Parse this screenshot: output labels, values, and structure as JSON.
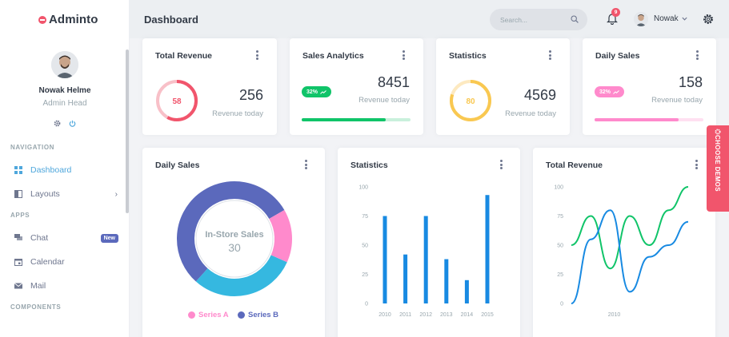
{
  "brand": {
    "name": "Adminto"
  },
  "user": {
    "name": "Nowak Helme",
    "role": "Admin Head"
  },
  "navigation": {
    "section_nav": "NAVIGATION",
    "section_apps": "APPS",
    "section_components": "COMPONENTS",
    "items": [
      {
        "label": "Dashboard",
        "icon": "dashboard-icon",
        "active": true
      },
      {
        "label": "Layouts",
        "icon": "layouts-icon"
      },
      {
        "label": "Chat",
        "icon": "chat-icon",
        "badge": "New"
      },
      {
        "label": "Calendar",
        "icon": "calendar-icon"
      },
      {
        "label": "Mail",
        "icon": "mail-icon"
      }
    ]
  },
  "topbar": {
    "title": "Dashboard",
    "search_placeholder": "Search...",
    "notification_count": "9",
    "user_short": "Nowak"
  },
  "stats": [
    {
      "title": "Total Revenue",
      "value": "256",
      "label": "Revenue today",
      "ring_value": "58",
      "ring_color": "#f1556c"
    },
    {
      "title": "Sales Analytics",
      "value": "8451",
      "label": "Revenue today",
      "pill": "32%",
      "pill_color": "#10c469",
      "progress": 0.77
    },
    {
      "title": "Statistics",
      "value": "4569",
      "label": "Revenue today",
      "ring_value": "80",
      "ring_color": "#f9c851"
    },
    {
      "title": "Daily Sales",
      "value": "158",
      "label": "Revenue today",
      "pill": "32%",
      "pill_color": "#ff8acc",
      "progress": 0.77
    }
  ],
  "donut_card": {
    "title": "Daily Sales"
  },
  "bar_card": {
    "title": "Statistics"
  },
  "line_card": {
    "title": "Total Revenue"
  },
  "demos_label": "CHOOSE DEMOS",
  "colors": {
    "accent": "#4fa7dc",
    "primary": "#5b69bc",
    "danger": "#f1556c",
    "success": "#10c469",
    "warning": "#f9c851",
    "pink": "#ff8acc",
    "info": "#35b8e0",
    "bar_blue": "#188ae2"
  },
  "chart_data": [
    {
      "type": "pie",
      "title": "Daily Sales",
      "center_label": "In-Store Sales",
      "center_value": "30",
      "series": [
        {
          "name": "Series A",
          "value": 15,
          "color": "#ff8acc"
        },
        {
          "name": "Series A",
          "value": 30,
          "color": "#35b8e0"
        },
        {
          "name": "Series B",
          "value": 55,
          "color": "#5b69bc"
        }
      ],
      "legend": [
        "Series A",
        "Series B"
      ]
    },
    {
      "type": "bar",
      "title": "Statistics",
      "categories": [
        "2010",
        "2011",
        "2012",
        "2013",
        "2014",
        "2015"
      ],
      "values": [
        75,
        42,
        75,
        38,
        20,
        93
      ],
      "ylim": [
        0,
        100
      ],
      "yticks": [
        "0",
        "25",
        "50",
        "75",
        "100"
      ],
      "grid": false
    },
    {
      "type": "line",
      "title": "Total Revenue",
      "x": [
        0,
        1,
        2,
        3,
        4,
        5,
        6
      ],
      "xtick_labels": [
        "2010"
      ],
      "series": [
        {
          "name": "",
          "color": "#10c469",
          "values": [
            50,
            75,
            30,
            75,
            50,
            80,
            100
          ]
        },
        {
          "name": "",
          "color": "#188ae2",
          "values": [
            0,
            55,
            80,
            10,
            40,
            50,
            70
          ]
        }
      ],
      "ylim": [
        0,
        100
      ],
      "yticks": [
        "0",
        "25",
        "50",
        "75",
        "100"
      ]
    }
  ]
}
